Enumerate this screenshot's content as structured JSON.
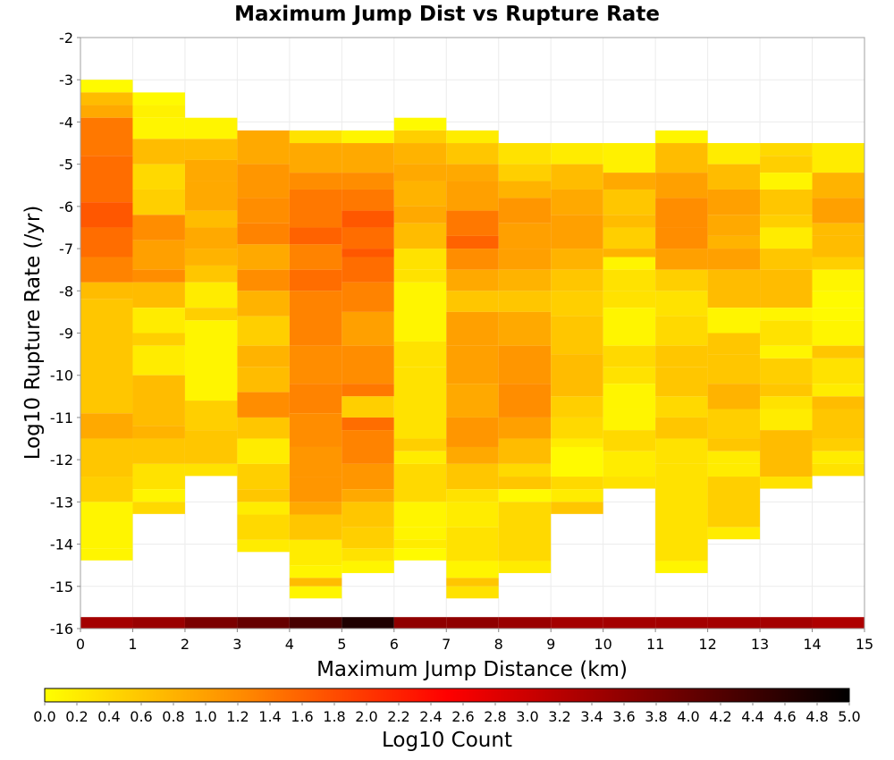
{
  "chart_data": {
    "type": "heatmap",
    "title": "Maximum Jump Dist vs Rupture Rate",
    "xlabel": "Maximum Jump Distance (km)",
    "ylabel": "Log10 Rupture Rate (/yr)",
    "colorbar_label": "Log10 Count",
    "xlim": [
      0,
      15
    ],
    "ylim": [
      -16,
      -2
    ],
    "x_ticks": [
      "0",
      "1",
      "2",
      "3",
      "4",
      "5",
      "6",
      "7",
      "8",
      "9",
      "10",
      "11",
      "12",
      "13",
      "14",
      "15"
    ],
    "y_ticks": [
      "-2",
      "-3",
      "-4",
      "-5",
      "-6",
      "-7",
      "-8",
      "-9",
      "-10",
      "-11",
      "-12",
      "-13",
      "-14",
      "-15",
      "-16"
    ],
    "colorbar_ticks": [
      "0.0",
      "0.2",
      "0.4",
      "0.6",
      "0.8",
      "1.0",
      "1.2",
      "1.4",
      "1.6",
      "1.8",
      "2.0",
      "2.2",
      "2.4",
      "2.6",
      "2.8",
      "3.0",
      "3.2",
      "3.4",
      "3.6",
      "3.8",
      "4.0",
      "4.2",
      "4.4",
      "4.6",
      "4.8",
      "5.0"
    ],
    "colorbar_range": [
      0,
      5
    ],
    "colormap": [
      "#ffff00",
      "#ff8800",
      "#ff0000",
      "#800000",
      "#000000"
    ],
    "cell_height": 0.2857,
    "bottom_strip_values": [
      3.4,
      3.5,
      3.8,
      4.0,
      4.3,
      4.7,
      3.6,
      3.6,
      3.5,
      3.4,
      3.4,
      3.4,
      3.4,
      3.4,
      3.3
    ],
    "cells": [
      {
        "x": 0,
        "ranges": [
          [
            -3.0,
            0.05
          ],
          [
            -3.3,
            0.7
          ],
          [
            -3.6,
            0.9
          ],
          [
            -3.9,
            1.4
          ],
          [
            -4.8,
            1.5
          ],
          [
            -5.9,
            1.7
          ],
          [
            -6.5,
            1.5
          ],
          [
            -7.2,
            1.3
          ],
          [
            -7.8,
            0.7
          ],
          [
            -8.2,
            0.6
          ],
          [
            -10.9,
            0.9
          ],
          [
            -11.5,
            0.6
          ],
          [
            -12.4,
            0.5
          ],
          [
            -13.0,
            0.1
          ],
          [
            -14.1,
            0.1
          ]
        ]
      },
      {
        "x": 1,
        "ranges": [
          [
            -3.3,
            0.05
          ],
          [
            -3.6,
            0.15
          ],
          [
            -3.9,
            0.1
          ],
          [
            -4.4,
            0.7
          ],
          [
            -5.0,
            0.4
          ],
          [
            -5.6,
            0.5
          ],
          [
            -6.2,
            1.2
          ],
          [
            -6.8,
            1.0
          ],
          [
            -7.5,
            1.2
          ],
          [
            -7.8,
            0.7
          ],
          [
            -8.4,
            0.2
          ],
          [
            -9.0,
            0.5
          ],
          [
            -9.3,
            0.2
          ],
          [
            -10.0,
            0.7
          ],
          [
            -11.2,
            0.8
          ],
          [
            -11.5,
            0.6
          ],
          [
            -12.1,
            0.3
          ],
          [
            -12.7,
            0.1
          ],
          [
            -13.0,
            0.4
          ]
        ]
      },
      {
        "x": 2,
        "ranges": [
          [
            -3.9,
            0.1
          ],
          [
            -4.4,
            0.7
          ],
          [
            -4.9,
            0.9
          ],
          [
            -5.4,
            0.9
          ],
          [
            -6.1,
            0.7
          ],
          [
            -6.5,
            0.9
          ],
          [
            -7.0,
            0.8
          ],
          [
            -7.4,
            0.6
          ],
          [
            -7.8,
            0.2
          ],
          [
            -8.4,
            0.5
          ],
          [
            -8.7,
            0.1
          ],
          [
            -10.6,
            0.5
          ],
          [
            -11.3,
            0.6
          ],
          [
            -12.1,
            0.3
          ]
        ]
      },
      {
        "x": 3,
        "ranges": [
          [
            -4.2,
            0.9
          ],
          [
            -5.0,
            1.1
          ],
          [
            -5.8,
            1.2
          ],
          [
            -6.4,
            1.3
          ],
          [
            -6.9,
            0.9
          ],
          [
            -7.5,
            1.2
          ],
          [
            -8.0,
            0.8
          ],
          [
            -8.6,
            0.5
          ],
          [
            -9.3,
            0.8
          ],
          [
            -9.8,
            0.7
          ],
          [
            -10.4,
            1.2
          ],
          [
            -11.0,
            0.6
          ],
          [
            -11.5,
            0.2
          ],
          [
            -12.1,
            0.5
          ],
          [
            -12.7,
            0.6
          ],
          [
            -13.0,
            0.2
          ],
          [
            -13.3,
            0.4
          ],
          [
            -13.9,
            0.2
          ]
        ]
      },
      {
        "x": 4,
        "ranges": [
          [
            -4.2,
            0.3
          ],
          [
            -4.5,
            0.9
          ],
          [
            -5.2,
            1.2
          ],
          [
            -5.6,
            1.4
          ],
          [
            -6.5,
            1.6
          ],
          [
            -6.9,
            1.3
          ],
          [
            -7.5,
            1.5
          ],
          [
            -8.0,
            1.3
          ],
          [
            -9.3,
            1.2
          ],
          [
            -10.2,
            1.3
          ],
          [
            -10.9,
            1.2
          ],
          [
            -11.7,
            1.1
          ],
          [
            -12.4,
            1.1
          ],
          [
            -13.0,
            0.9
          ],
          [
            -13.3,
            0.6
          ],
          [
            -13.9,
            0.2
          ],
          [
            -14.5,
            0.1
          ],
          [
            -14.8,
            0.7
          ],
          [
            -15.0,
            0.1
          ]
        ]
      },
      {
        "x": 5,
        "ranges": [
          [
            -4.2,
            0.1
          ],
          [
            -4.5,
            0.9
          ],
          [
            -5.2,
            1.2
          ],
          [
            -5.6,
            1.4
          ],
          [
            -6.1,
            1.7
          ],
          [
            -6.5,
            1.5
          ],
          [
            -7.0,
            1.7
          ],
          [
            -7.2,
            1.5
          ],
          [
            -7.8,
            1.3
          ],
          [
            -8.5,
            1.0
          ],
          [
            -9.3,
            1.2
          ],
          [
            -10.2,
            1.4
          ],
          [
            -10.5,
            0.5
          ],
          [
            -11.0,
            1.5
          ],
          [
            -11.3,
            1.3
          ],
          [
            -12.1,
            1.1
          ],
          [
            -12.7,
            0.9
          ],
          [
            -13.0,
            0.6
          ],
          [
            -13.6,
            0.5
          ],
          [
            -14.1,
            0.3
          ],
          [
            -14.4,
            0.1
          ]
        ]
      },
      {
        "x": 6,
        "ranges": [
          [
            -3.9,
            0.05
          ],
          [
            -4.2,
            0.5
          ],
          [
            -4.5,
            0.8
          ],
          [
            -5.0,
            0.9
          ],
          [
            -5.4,
            0.8
          ],
          [
            -6.0,
            0.9
          ],
          [
            -6.4,
            0.7
          ],
          [
            -7.0,
            0.3
          ],
          [
            -7.5,
            0.3
          ],
          [
            -7.8,
            0.1
          ],
          [
            -9.2,
            0.3
          ],
          [
            -9.8,
            0.3
          ],
          [
            -11.5,
            0.5
          ],
          [
            -11.8,
            0.2
          ],
          [
            -12.1,
            0.4
          ],
          [
            -13.0,
            0.1
          ],
          [
            -13.6,
            0.1
          ],
          [
            -13.9,
            0.2
          ],
          [
            -14.1,
            0.05
          ]
        ]
      },
      {
        "x": 7,
        "ranges": [
          [
            -4.2,
            0.2
          ],
          [
            -4.5,
            0.6
          ],
          [
            -5.0,
            0.9
          ],
          [
            -5.4,
            1.0
          ],
          [
            -6.1,
            1.4
          ],
          [
            -6.7,
            1.6
          ],
          [
            -7.0,
            1.2
          ],
          [
            -7.5,
            0.9
          ],
          [
            -8.0,
            0.6
          ],
          [
            -8.5,
            1.0
          ],
          [
            -9.3,
            1.0
          ],
          [
            -10.2,
            0.9
          ],
          [
            -11.0,
            1.1
          ],
          [
            -11.7,
            0.9
          ],
          [
            -12.1,
            0.6
          ],
          [
            -12.7,
            0.3
          ],
          [
            -13.0,
            0.2
          ],
          [
            -13.6,
            0.3
          ],
          [
            -14.4,
            0.1
          ],
          [
            -14.8,
            0.6
          ],
          [
            -15.0,
            0.3
          ]
        ]
      },
      {
        "x": 8,
        "ranges": [
          [
            -4.5,
            0.3
          ],
          [
            -5.0,
            0.5
          ],
          [
            -5.4,
            0.8
          ],
          [
            -5.8,
            1.1
          ],
          [
            -6.4,
            1.0
          ],
          [
            -7.0,
            1.0
          ],
          [
            -7.5,
            0.8
          ],
          [
            -8.0,
            0.6
          ],
          [
            -8.5,
            0.9
          ],
          [
            -9.3,
            1.1
          ],
          [
            -10.2,
            1.2
          ],
          [
            -11.0,
            1.0
          ],
          [
            -11.5,
            0.7
          ],
          [
            -12.1,
            0.4
          ],
          [
            -12.4,
            0.6
          ],
          [
            -12.7,
            0.05
          ],
          [
            -13.0,
            0.4
          ],
          [
            -14.4,
            0.2
          ]
        ]
      },
      {
        "x": 9,
        "ranges": [
          [
            -4.5,
            0.2
          ],
          [
            -5.0,
            0.7
          ],
          [
            -5.6,
            0.9
          ],
          [
            -6.2,
            1.0
          ],
          [
            -7.0,
            0.8
          ],
          [
            -7.5,
            0.6
          ],
          [
            -8.0,
            0.5
          ],
          [
            -8.6,
            0.6
          ],
          [
            -9.5,
            0.7
          ],
          [
            -10.5,
            0.5
          ],
          [
            -11.0,
            0.4
          ],
          [
            -11.5,
            0.2
          ],
          [
            -11.7,
            0.05
          ],
          [
            -12.4,
            0.4
          ],
          [
            -12.7,
            0.2
          ],
          [
            -13.0,
            0.6
          ]
        ]
      },
      {
        "x": 10,
        "ranges": [
          [
            -4.5,
            0.15
          ],
          [
            -5.2,
            0.9
          ],
          [
            -5.6,
            0.6
          ],
          [
            -6.2,
            0.7
          ],
          [
            -6.5,
            0.5
          ],
          [
            -7.0,
            0.8
          ],
          [
            -7.2,
            0.1
          ],
          [
            -7.5,
            0.3
          ],
          [
            -8.0,
            0.3
          ],
          [
            -8.4,
            0.1
          ],
          [
            -9.3,
            0.4
          ],
          [
            -9.8,
            0.3
          ],
          [
            -10.2,
            0.1
          ],
          [
            -10.8,
            0.1
          ],
          [
            -11.3,
            0.4
          ],
          [
            -11.8,
            0.2
          ],
          [
            -12.4,
            0.3
          ]
        ]
      },
      {
        "x": 11,
        "ranges": [
          [
            -4.2,
            0.1
          ],
          [
            -4.5,
            0.7
          ],
          [
            -5.2,
            1.0
          ],
          [
            -5.8,
            1.2
          ],
          [
            -6.5,
            1.2
          ],
          [
            -7.0,
            1.0
          ],
          [
            -7.5,
            0.5
          ],
          [
            -8.0,
            0.3
          ],
          [
            -8.6,
            0.4
          ],
          [
            -9.3,
            0.6
          ],
          [
            -9.8,
            0.6
          ],
          [
            -10.5,
            0.4
          ],
          [
            -11.0,
            0.6
          ],
          [
            -11.5,
            0.3
          ],
          [
            -12.1,
            0.3
          ],
          [
            -14.4,
            0.1
          ]
        ]
      },
      {
        "x": 12,
        "ranges": [
          [
            -4.5,
            0.2
          ],
          [
            -5.0,
            0.7
          ],
          [
            -5.6,
            1.0
          ],
          [
            -6.2,
            0.9
          ],
          [
            -6.7,
            0.8
          ],
          [
            -7.0,
            1.0
          ],
          [
            -7.5,
            0.7
          ],
          [
            -8.4,
            0.1
          ],
          [
            -9.0,
            0.6
          ],
          [
            -9.5,
            0.6
          ],
          [
            -10.2,
            0.8
          ],
          [
            -10.8,
            0.5
          ],
          [
            -11.5,
            0.6
          ],
          [
            -11.8,
            0.2
          ],
          [
            -12.1,
            0.2
          ],
          [
            -12.4,
            0.5
          ],
          [
            -13.6,
            0.2
          ]
        ]
      },
      {
        "x": 13,
        "ranges": [
          [
            -4.5,
            0.4
          ],
          [
            -4.8,
            0.5
          ],
          [
            -5.2,
            0.1
          ],
          [
            -5.6,
            0.6
          ],
          [
            -6.2,
            0.5
          ],
          [
            -6.5,
            0.2
          ],
          [
            -7.0,
            0.6
          ],
          [
            -7.5,
            0.7
          ],
          [
            -8.4,
            0.1
          ],
          [
            -8.7,
            0.3
          ],
          [
            -9.3,
            0.1
          ],
          [
            -9.6,
            0.5
          ],
          [
            -10.2,
            0.6
          ],
          [
            -10.5,
            0.3
          ],
          [
            -10.8,
            0.2
          ],
          [
            -11.3,
            0.7
          ],
          [
            -12.4,
            0.3
          ]
        ]
      },
      {
        "x": 14,
        "ranges": [
          [
            -4.5,
            0.2
          ],
          [
            -5.2,
            0.8
          ],
          [
            -5.8,
            1.0
          ],
          [
            -6.4,
            0.7
          ],
          [
            -6.7,
            0.7
          ],
          [
            -7.2,
            0.5
          ],
          [
            -7.5,
            0.1
          ],
          [
            -8.0,
            0.05
          ],
          [
            -8.4,
            0.05
          ],
          [
            -8.7,
            0.1
          ],
          [
            -9.3,
            0.6
          ],
          [
            -9.6,
            0.3
          ],
          [
            -10.2,
            0.2
          ],
          [
            -10.5,
            0.7
          ],
          [
            -10.8,
            0.6
          ],
          [
            -11.5,
            0.5
          ],
          [
            -11.8,
            0.2
          ],
          [
            -12.1,
            0.3
          ]
        ]
      }
    ]
  }
}
